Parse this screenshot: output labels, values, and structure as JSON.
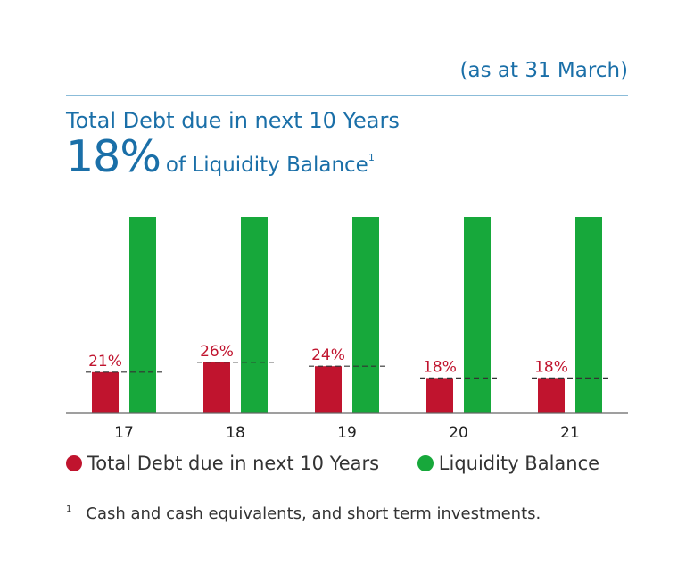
{
  "header": {
    "as_at": "(as at 31 March)",
    "title_line1": "Total Debt due in next 10 Years",
    "title_big": "18%",
    "title_rest": "of Liquidity Balance",
    "title_sup": "1"
  },
  "colors": {
    "debt": "#c0142e",
    "liquidity": "#17a83b",
    "text_blue": "#1a6fa8",
    "axis": "#666666"
  },
  "chart_data": {
    "type": "bar",
    "categories": [
      "17",
      "18",
      "19",
      "20",
      "21"
    ],
    "series": [
      {
        "name": "Total Debt due in next 10 Years",
        "values": [
          21,
          26,
          24,
          18,
          18
        ]
      },
      {
        "name": "Liquidity Balance",
        "values": [
          100,
          100,
          100,
          100,
          100
        ]
      }
    ],
    "data_labels": [
      "21%",
      "26%",
      "24%",
      "18%",
      "18%"
    ],
    "ylim": [
      0,
      100
    ],
    "grid": false,
    "legend": "bottom"
  },
  "legend": {
    "debt_label": "Total Debt due in next 10 Years",
    "liquidity_label": "Liquidity Balance"
  },
  "footnote": {
    "marker": "1",
    "text": "Cash and cash equivalents, and short term investments."
  }
}
